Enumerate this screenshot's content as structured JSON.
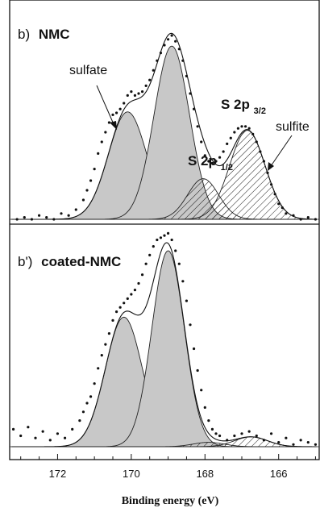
{
  "chart_data": [
    {
      "type": "scatter",
      "panel_label": "b)",
      "panel_name": "NMC",
      "x_range": [
        173.3,
        164.9
      ],
      "x_reversed": true,
      "annotations": {
        "sulfate": "sulfate",
        "sulfite": "sulfite",
        "s2p32_main": "S 2p",
        "s2p32_sub": "3/2",
        "s2p12_main": "S 2p",
        "s2p12_sub": "1/2"
      },
      "components": [
        {
          "center": 170.1,
          "height": 0.555,
          "sigma": 0.52,
          "fill": "#c8c8c8",
          "hatched": false
        },
        {
          "center": 168.9,
          "height": 0.895,
          "sigma": 0.48,
          "fill": "#c8c8c8",
          "hatched": false
        },
        {
          "center": 168.05,
          "height": 0.21,
          "sigma": 0.42,
          "fill": "none",
          "hatched": true
        },
        {
          "center": 166.85,
          "height": 0.46,
          "sigma": 0.48,
          "fill": "none",
          "hatched": true
        }
      ],
      "data_points": [
        [
          173.1,
          0.0
        ],
        [
          172.9,
          0.01
        ],
        [
          172.7,
          0.0
        ],
        [
          172.5,
          0.02
        ],
        [
          172.3,
          0.01
        ],
        [
          172.1,
          0.0
        ],
        [
          171.9,
          0.03
        ],
        [
          171.7,
          0.02
        ],
        [
          171.5,
          0.05
        ],
        [
          171.3,
          0.1
        ],
        [
          171.2,
          0.15
        ],
        [
          171.1,
          0.2
        ],
        [
          171.0,
          0.26
        ],
        [
          170.9,
          0.34
        ],
        [
          170.8,
          0.4
        ],
        [
          170.7,
          0.45
        ],
        [
          170.6,
          0.5
        ],
        [
          170.5,
          0.54
        ],
        [
          170.4,
          0.55
        ],
        [
          170.3,
          0.57
        ],
        [
          170.2,
          0.6
        ],
        [
          170.1,
          0.64
        ],
        [
          170.0,
          0.66
        ],
        [
          169.9,
          0.64
        ],
        [
          169.8,
          0.65
        ],
        [
          169.7,
          0.66
        ],
        [
          169.6,
          0.69
        ],
        [
          169.5,
          0.72
        ],
        [
          169.4,
          0.77
        ],
        [
          169.3,
          0.82
        ],
        [
          169.2,
          0.86
        ],
        [
          169.1,
          0.9
        ],
        [
          169.0,
          0.93
        ],
        [
          168.9,
          0.95
        ],
        [
          168.8,
          0.92
        ],
        [
          168.7,
          0.88
        ],
        [
          168.6,
          0.82
        ],
        [
          168.5,
          0.74
        ],
        [
          168.4,
          0.65
        ],
        [
          168.3,
          0.57
        ],
        [
          168.2,
          0.48
        ],
        [
          168.1,
          0.4
        ],
        [
          168.0,
          0.33
        ],
        [
          167.9,
          0.3
        ],
        [
          167.8,
          0.29
        ],
        [
          167.7,
          0.3
        ],
        [
          167.6,
          0.32
        ],
        [
          167.5,
          0.35
        ],
        [
          167.4,
          0.39
        ],
        [
          167.3,
          0.42
        ],
        [
          167.2,
          0.45
        ],
        [
          167.1,
          0.47
        ],
        [
          167.0,
          0.48
        ],
        [
          166.9,
          0.48
        ],
        [
          166.8,
          0.47
        ],
        [
          166.7,
          0.44
        ],
        [
          166.6,
          0.4
        ],
        [
          166.5,
          0.35
        ],
        [
          166.4,
          0.3
        ],
        [
          166.3,
          0.24
        ],
        [
          166.2,
          0.18
        ],
        [
          166.1,
          0.13
        ],
        [
          166.0,
          0.08
        ],
        [
          165.9,
          0.06
        ],
        [
          165.8,
          0.03
        ],
        [
          165.6,
          0.02
        ],
        [
          165.4,
          0.0
        ],
        [
          165.2,
          0.01
        ],
        [
          165.0,
          0.0
        ]
      ]
    },
    {
      "type": "scatter",
      "panel_label": "b')",
      "panel_name": "coated-NMC",
      "x_range": [
        173.3,
        164.9
      ],
      "x_reversed": true,
      "components": [
        {
          "center": 170.2,
          "height": 0.595,
          "sigma": 0.5,
          "fill": "#c8c8c8",
          "hatched": false
        },
        {
          "center": 169.0,
          "height": 0.9,
          "sigma": 0.44,
          "fill": "#c8c8c8",
          "hatched": false
        },
        {
          "center": 167.9,
          "height": 0.02,
          "sigma": 0.42,
          "fill": "none",
          "hatched": true
        },
        {
          "center": 166.75,
          "height": 0.045,
          "sigma": 0.45,
          "fill": "none",
          "hatched": true
        }
      ],
      "data_points": [
        [
          173.2,
          0.08
        ],
        [
          173.0,
          0.05
        ],
        [
          172.8,
          0.09
        ],
        [
          172.6,
          0.04
        ],
        [
          172.4,
          0.07
        ],
        [
          172.2,
          0.03
        ],
        [
          172.0,
          0.06
        ],
        [
          171.8,
          0.04
        ],
        [
          171.6,
          0.08
        ],
        [
          171.4,
          0.12
        ],
        [
          171.3,
          0.16
        ],
        [
          171.2,
          0.2
        ],
        [
          171.1,
          0.23
        ],
        [
          171.0,
          0.29
        ],
        [
          170.9,
          0.36
        ],
        [
          170.8,
          0.42
        ],
        [
          170.7,
          0.47
        ],
        [
          170.6,
          0.52
        ],
        [
          170.5,
          0.58
        ],
        [
          170.4,
          0.62
        ],
        [
          170.3,
          0.64
        ],
        [
          170.2,
          0.66
        ],
        [
          170.1,
          0.68
        ],
        [
          170.0,
          0.7
        ],
        [
          169.9,
          0.72
        ],
        [
          169.8,
          0.75
        ],
        [
          169.7,
          0.79
        ],
        [
          169.6,
          0.84
        ],
        [
          169.5,
          0.88
        ],
        [
          169.4,
          0.92
        ],
        [
          169.3,
          0.95
        ],
        [
          169.2,
          0.96
        ],
        [
          169.1,
          0.97
        ],
        [
          169.0,
          0.98
        ],
        [
          168.9,
          0.95
        ],
        [
          168.8,
          0.9
        ],
        [
          168.7,
          0.84
        ],
        [
          168.6,
          0.76
        ],
        [
          168.5,
          0.67
        ],
        [
          168.4,
          0.56
        ],
        [
          168.3,
          0.45
        ],
        [
          168.2,
          0.35
        ],
        [
          168.1,
          0.26
        ],
        [
          168.0,
          0.18
        ],
        [
          167.9,
          0.12
        ],
        [
          167.8,
          0.08
        ],
        [
          167.7,
          0.06
        ],
        [
          167.6,
          0.05
        ],
        [
          167.4,
          0.03
        ],
        [
          167.2,
          0.05
        ],
        [
          167.0,
          0.06
        ],
        [
          166.8,
          0.07
        ],
        [
          166.6,
          0.05
        ],
        [
          166.4,
          0.03
        ],
        [
          166.2,
          0.06
        ],
        [
          166.0,
          0.02
        ],
        [
          165.8,
          0.04
        ],
        [
          165.6,
          0.01
        ],
        [
          165.4,
          0.03
        ],
        [
          165.2,
          0.02
        ],
        [
          165.0,
          0.01
        ]
      ]
    }
  ],
  "x_axis": {
    "label": "Binding energy (eV)",
    "ticks": [
      172,
      170,
      168,
      166
    ],
    "tick_labels": [
      "172",
      "170",
      "168",
      "166"
    ]
  }
}
